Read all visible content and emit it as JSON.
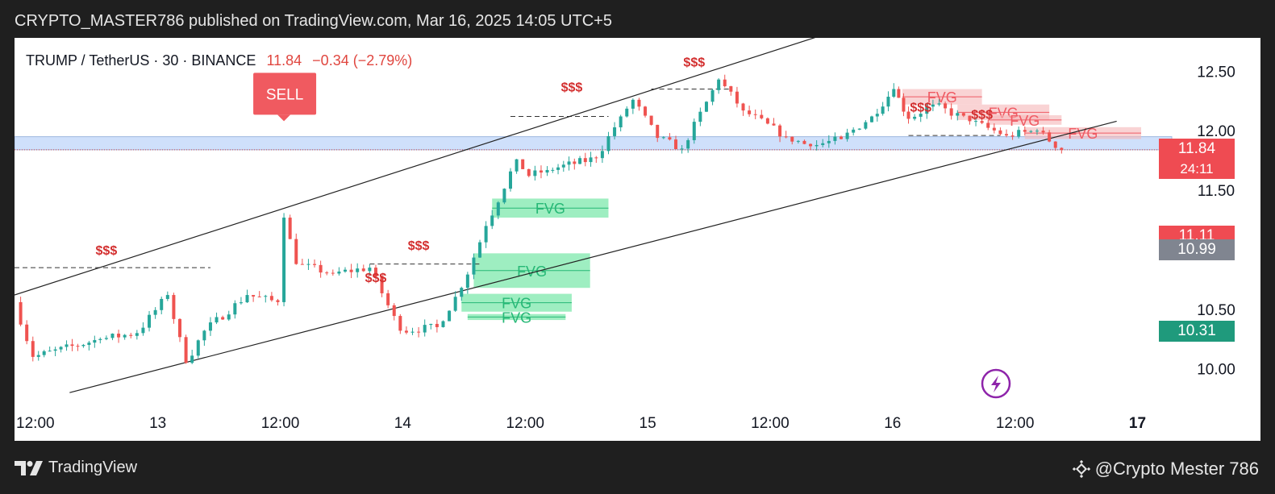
{
  "header": {
    "caption": "CRYPTO_MASTER786 published on TradingView.com, Mar 16, 2025 14:05 UTC+5"
  },
  "symbol": {
    "pair": "TRUMP / TetherUS · 30 · BINANCE",
    "last": "11.84",
    "change": "−0.34 (−2.79%)"
  },
  "footer": {
    "brand": "TradingView",
    "watermark": "@Crypto Mester 786"
  },
  "colors": {
    "up": "#26a69a",
    "down": "#ef5350",
    "fvg_bull": "#7ee8ac",
    "fvg_bear": "#f5b5b8",
    "zone": "#cfe0fb",
    "sell": "#f05a60",
    "liquidity": "#d32f2f"
  },
  "chart_data": {
    "type": "candlestick",
    "interval": "30",
    "exchange": "BINANCE",
    "ylim": [
      9.72,
      12.78
    ],
    "y_ticks": [
      "12.50",
      "12.00",
      "11.50",
      "10.50",
      "10.00"
    ],
    "x_ticks": [
      "12:00",
      "13",
      "12:00",
      "14",
      "12:00",
      "15",
      "12:00",
      "16",
      "12:00",
      "17"
    ],
    "price_labels": [
      {
        "value": 11.84,
        "text": "11.84",
        "sub": "24:11",
        "color": "#ef4b52"
      },
      {
        "value": 11.11,
        "text": "11.11",
        "color": "#ef4b52"
      },
      {
        "value": 10.99,
        "text": "10.99",
        "color": "#808590"
      },
      {
        "value": 10.31,
        "text": "10.31",
        "color": "#1f9a7c"
      }
    ],
    "key_points": [
      {
        "t": 0,
        "price": 10.56
      },
      {
        "t": 0.15,
        "price": 10.1
      },
      {
        "t": 0.7,
        "price": 10.25
      },
      {
        "t": 1.0,
        "price": 10.3
      },
      {
        "t": 1.25,
        "price": 10.62
      },
      {
        "t": 1.4,
        "price": 10.05
      },
      {
        "t": 1.55,
        "price": 10.32
      },
      {
        "t": 1.9,
        "price": 10.62
      },
      {
        "t": 2.15,
        "price": 10.56
      },
      {
        "t": 2.2,
        "price": 11.27
      },
      {
        "t": 2.3,
        "price": 10.88
      },
      {
        "t": 2.6,
        "price": 10.8
      },
      {
        "t": 2.9,
        "price": 10.85
      },
      {
        "t": 3.15,
        "price": 10.32
      },
      {
        "t": 3.45,
        "price": 10.35
      },
      {
        "t": 3.65,
        "price": 10.68
      },
      {
        "t": 3.85,
        "price": 11.2
      },
      {
        "t": 4.1,
        "price": 11.76
      },
      {
        "t": 4.2,
        "price": 11.62
      },
      {
        "t": 4.35,
        "price": 11.67
      },
      {
        "t": 4.75,
        "price": 11.77
      },
      {
        "t": 4.95,
        "price": 12.12
      },
      {
        "t": 5.05,
        "price": 12.26
      },
      {
        "t": 5.25,
        "price": 11.94
      },
      {
        "t": 5.45,
        "price": 11.85
      },
      {
        "t": 5.75,
        "price": 12.43
      },
      {
        "t": 5.95,
        "price": 12.17
      },
      {
        "t": 6.3,
        "price": 11.95
      },
      {
        "t": 6.5,
        "price": 11.87
      },
      {
        "t": 6.75,
        "price": 11.93
      },
      {
        "t": 7.0,
        "price": 12.12
      },
      {
        "t": 7.18,
        "price": 12.35
      },
      {
        "t": 7.3,
        "price": 12.1
      },
      {
        "t": 7.5,
        "price": 12.22
      },
      {
        "t": 7.8,
        "price": 12.08
      },
      {
        "t": 8.1,
        "price": 11.96
      },
      {
        "t": 8.35,
        "price": 12.0
      },
      {
        "t": 8.55,
        "price": 11.84
      }
    ],
    "channel": {
      "upper": [
        {
          "t": 0,
          "price": 10.62
        },
        {
          "t": 6.8,
          "price": 12.87
        }
      ],
      "lower": [
        {
          "t": 0.45,
          "price": 9.8
        },
        {
          "t": 9.0,
          "price": 12.08
        }
      ]
    },
    "horizontal_zone": {
      "top": 11.95,
      "bottom": 11.84,
      "line": 11.84
    },
    "liquidity_lines": [
      {
        "from": 0,
        "to": 1.6,
        "price": 10.85
      },
      {
        "from": 2.9,
        "to": 3.8,
        "price": 10.88
      },
      {
        "from": 4.05,
        "to": 4.85,
        "price": 12.12
      },
      {
        "from": 5.2,
        "to": 5.85,
        "price": 12.35
      },
      {
        "from": 7.3,
        "to": 8.05,
        "price": 11.96
      }
    ],
    "annotations": [
      {
        "type": "sell",
        "text": "SELL",
        "t": 2.2,
        "price": 12.27
      },
      {
        "type": "liquidity",
        "text": "$$$",
        "t": 0.75,
        "price": 10.96
      },
      {
        "type": "liquidity",
        "text": "$$$",
        "t": 3.3,
        "price": 11.0
      },
      {
        "type": "liquidity",
        "text": "$$$",
        "t": 2.95,
        "price": 10.73
      },
      {
        "type": "liquidity",
        "text": "$$$",
        "t": 4.55,
        "price": 12.33
      },
      {
        "type": "liquidity",
        "text": "$$$",
        "t": 5.55,
        "price": 12.54
      },
      {
        "type": "liquidity",
        "text": "$$$",
        "t": 7.4,
        "price": 12.16
      },
      {
        "type": "liquidity",
        "text": "$$$",
        "t": 7.9,
        "price": 12.1
      }
    ],
    "fvg_zones": [
      {
        "dir": "bull",
        "text": "FVG",
        "from": 3.9,
        "to": 4.85,
        "top": 11.43,
        "bottom": 11.27
      },
      {
        "dir": "bull",
        "text": "FVG",
        "from": 3.75,
        "to": 4.7,
        "top": 10.97,
        "bottom": 10.68
      },
      {
        "dir": "bull",
        "text": "FVG",
        "from": 3.65,
        "to": 4.55,
        "top": 10.63,
        "bottom": 10.48
      },
      {
        "dir": "bull",
        "text": "FVG",
        "from": 3.7,
        "to": 4.5,
        "top": 10.46,
        "bottom": 10.41
      },
      {
        "dir": "bear",
        "text": "FVG",
        "from": 7.25,
        "to": 7.9,
        "top": 12.35,
        "bottom": 12.22
      },
      {
        "dir": "bear",
        "text": "FVG",
        "from": 7.7,
        "to": 8.45,
        "top": 12.22,
        "bottom": 12.09
      },
      {
        "dir": "bear",
        "text": "FVG",
        "from": 7.95,
        "to": 8.55,
        "top": 12.13,
        "bottom": 12.05
      },
      {
        "dir": "bear",
        "text": "FVG",
        "from": 8.25,
        "to": 9.2,
        "top": 12.03,
        "bottom": 11.93
      }
    ]
  }
}
